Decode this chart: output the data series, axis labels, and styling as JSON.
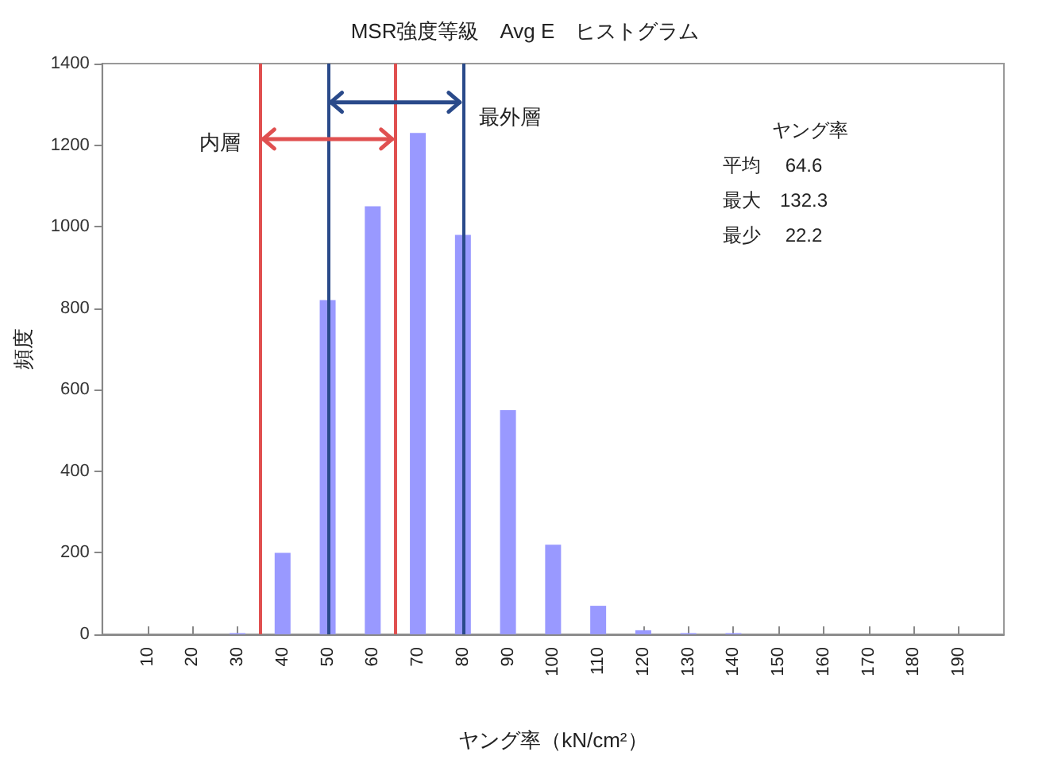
{
  "chart_data": {
    "type": "bar",
    "title": "MSR強度等級　Avg E　ヒストグラム",
    "xlabel": "ヤング率（kN/cm²）",
    "ylabel": "頻度",
    "x": [
      10,
      20,
      30,
      40,
      50,
      60,
      70,
      80,
      90,
      100,
      110,
      120,
      130,
      140,
      150,
      160,
      170,
      180,
      190
    ],
    "values": [
      0,
      0,
      3,
      200,
      820,
      1050,
      1230,
      980,
      550,
      220,
      70,
      10,
      3,
      3,
      0,
      0,
      0,
      0,
      0
    ],
    "color": "#9999ff",
    "xlim": [
      0,
      200
    ],
    "xticks": [
      10,
      20,
      30,
      40,
      50,
      60,
      70,
      80,
      90,
      100,
      110,
      120,
      130,
      140,
      150,
      160,
      170,
      180,
      190
    ],
    "ylim": [
      0,
      1400
    ],
    "yticks": [
      0,
      200,
      400,
      600,
      800,
      1000,
      1200,
      1400
    ],
    "grid": false,
    "ref_lines": [
      {
        "axis": "x",
        "value": 35,
        "color": "#e05050"
      },
      {
        "axis": "x",
        "value": 65,
        "color": "#e05050"
      },
      {
        "axis": "x",
        "value": 50,
        "color": "#2a4a8a"
      },
      {
        "axis": "x",
        "value": 80,
        "color": "#2a4a8a"
      }
    ],
    "annotations": [
      {
        "text": "内層",
        "x": 35,
        "y": 1215
      },
      {
        "text": "最外層",
        "x": 80,
        "y": 1305
      },
      "ヤング率",
      "平均　 64.6",
      "最大　132.3",
      "最少　 22.2"
    ]
  }
}
